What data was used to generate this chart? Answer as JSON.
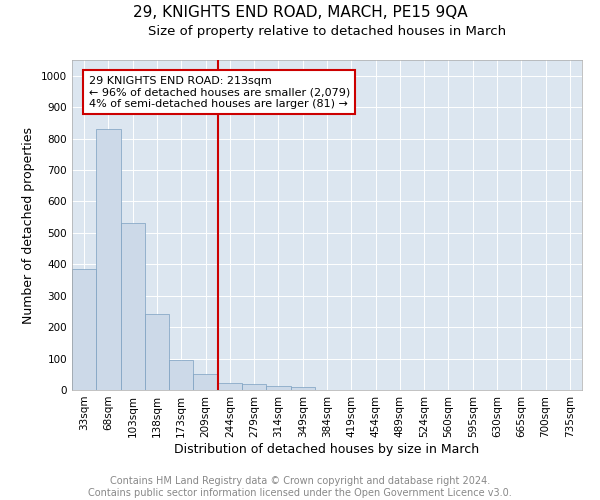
{
  "title": "29, KNIGHTS END ROAD, MARCH, PE15 9QA",
  "subtitle": "Size of property relative to detached houses in March",
  "xlabel": "Distribution of detached houses by size in March",
  "ylabel": "Number of detached properties",
  "bar_values": [
    385,
    830,
    530,
    242,
    95,
    50,
    22,
    18,
    12,
    10,
    0,
    0,
    0,
    0,
    0,
    0,
    0,
    0,
    0,
    0,
    0
  ],
  "bar_labels": [
    "33sqm",
    "68sqm",
    "103sqm",
    "138sqm",
    "173sqm",
    "209sqm",
    "244sqm",
    "279sqm",
    "314sqm",
    "349sqm",
    "384sqm",
    "419sqm",
    "454sqm",
    "489sqm",
    "524sqm",
    "560sqm",
    "595sqm",
    "630sqm",
    "665sqm",
    "700sqm",
    "735sqm"
  ],
  "bar_color": "#ccd9e8",
  "bar_edge_color": "#7a9fc0",
  "vline_x": 5.5,
  "vline_color": "#cc0000",
  "annotation_lines": [
    "29 KNIGHTS END ROAD: 213sqm",
    "← 96% of detached houses are smaller (2,079)",
    "4% of semi-detached houses are larger (81) →"
  ],
  "annotation_box_color": "#cc0000",
  "ylim": [
    0,
    1050
  ],
  "yticks": [
    0,
    100,
    200,
    300,
    400,
    500,
    600,
    700,
    800,
    900,
    1000
  ],
  "footer_line1": "Contains HM Land Registry data © Crown copyright and database right 2024.",
  "footer_line2": "Contains public sector information licensed under the Open Government Licence v3.0.",
  "plot_bg_color": "#dce6f0",
  "title_fontsize": 11,
  "subtitle_fontsize": 9.5,
  "axis_label_fontsize": 9,
  "tick_fontsize": 7.5,
  "footer_fontsize": 7,
  "annotation_fontsize": 8
}
